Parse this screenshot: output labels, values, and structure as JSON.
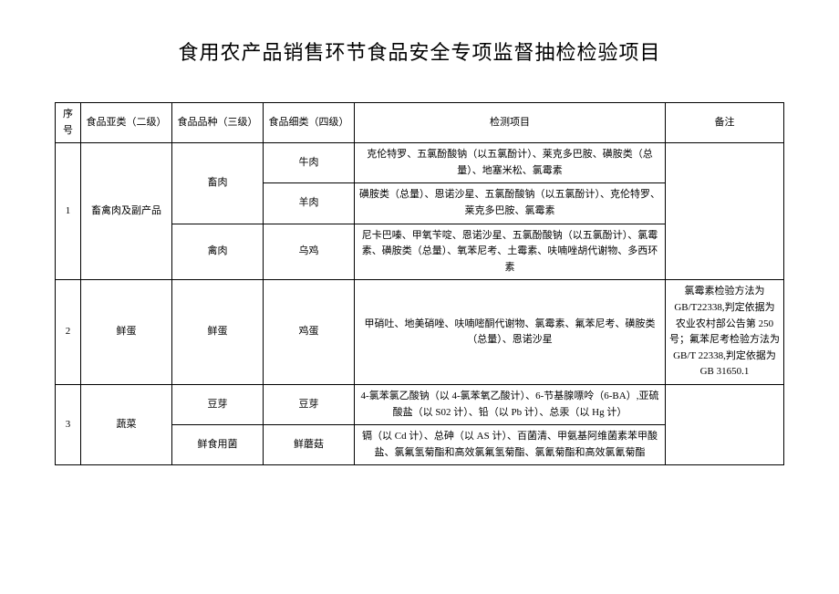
{
  "title": "食用农产品销售环节食品安全专项监督抽检检验项目",
  "headers": {
    "seq": "序号",
    "sub": "食品亚类（二级）",
    "kind": "食品品种（三级）",
    "fine": "食品细类（四级）",
    "test": "检测项目",
    "note": "备注"
  },
  "rows": {
    "r1": {
      "seq": "1",
      "sub": "畜禽肉及副产品",
      "kind1": "畜肉",
      "fine1": "牛肉",
      "test1": "克伦特罗、五氯酚酸钠（以五氯酚计）、莱克多巴胺、磺胺类（总量）、地塞米松、氯霉素",
      "fine2": "羊肉",
      "test2": "磺胺类（总量）、恩诺沙星、五氯酚酸钠（以五氯酚计）、克伦特罗、莱克多巴胺、氯霉素",
      "kind2": "禽肉",
      "fine3": "乌鸡",
      "test3": "尼卡巴嗪、甲氧苄啶、恩诺沙星、五氯酚酸钠（以五氯酚计）、氯霉素、磺胺类（总量）、氧苯尼考、土霉素、呋喃唑胡代谢物、多西环素"
    },
    "r2": {
      "seq": "2",
      "sub": "鲜蛋",
      "kind": "鲜蛋",
      "fine": "鸡蛋",
      "test": "甲硝吐、地美硝唑、呋喃嘧酮代谢物、氯霉素、氟苯尼考、磺胺类（总量）、恩诺沙星",
      "note": "氯霉素检验方法为GB/T22338,判定依据为农业农村部公告第 250号；氟苯尼考检验方法为 GB/T 22338,判定依据为 GB 31650.1"
    },
    "r3": {
      "seq": "3",
      "sub": "蔬菜",
      "kind1": "豆芽",
      "fine1": "豆芽",
      "test1": "4-氯苯氯乙酸钠（以 4-氯苯氧乙酸计）、6-节基腺嘌呤（6-BA）,亚硫酸盐（以 S02 计）、铅（以 Pb 计）、总汞（以 Hg 计）",
      "kind2": "鲜食用菌",
      "fine2": "鲜蘑菇",
      "test2": "镉（以 Cd 计）、总砷（以 AS 计）、百菌清、甲氨基阿维菌素苯甲酸盐、氯氟氢菊酯和高效氯氟氢菊酯、氯氰菊酯和高效氯氰菊酯"
    }
  }
}
